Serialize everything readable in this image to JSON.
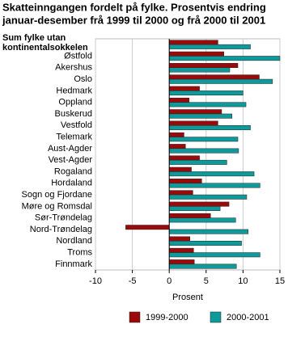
{
  "chart_data": {
    "type": "hbar",
    "title": [
      "Skatteinngangen fordelt på fylke. Prosentvis endring",
      "januar-desember frå 1999 til 2000 og frå 2000 til 2001"
    ],
    "categories": [
      "Sum fylke utan kontinentalsokkelen",
      "Østfold",
      "Akershus",
      "Oslo",
      "Hedmark",
      "Oppland",
      "Buskerud",
      "Vestfold",
      "Telemark",
      "Aust-Agder",
      "Vest-Agder",
      "Rogaland",
      "Hordaland",
      "Sogn og Fjordane",
      "Møre og Romsdal",
      "Sør-Trøndelag",
      "Nord-Trøndelag",
      "Nordland",
      "Troms",
      "Finnmark"
    ],
    "series": [
      {
        "name": "1999-2000",
        "color": "#9b0a0a",
        "values": [
          6.6,
          7.4,
          9.3,
          12.2,
          4.1,
          2.7,
          7.1,
          6.6,
          2.0,
          2.2,
          4.1,
          3.0,
          4.4,
          3.2,
          8.1,
          5.6,
          -5.9,
          2.8,
          3.3,
          3.4
        ]
      },
      {
        "name": "2000-2001",
        "color": "#0e9a9a",
        "values": [
          11.0,
          15.0,
          8.2,
          14.0,
          10.0,
          10.4,
          8.5,
          11.0,
          9.3,
          9.4,
          7.8,
          11.5,
          12.3,
          10.5,
          6.9,
          9.0,
          10.7,
          9.8,
          12.3,
          9.1
        ]
      }
    ],
    "xlabel": "Prosent",
    "xlim": [
      -10,
      15
    ],
    "xticks": [
      -10,
      -5,
      0,
      5,
      10,
      15
    ],
    "grid": true
  }
}
